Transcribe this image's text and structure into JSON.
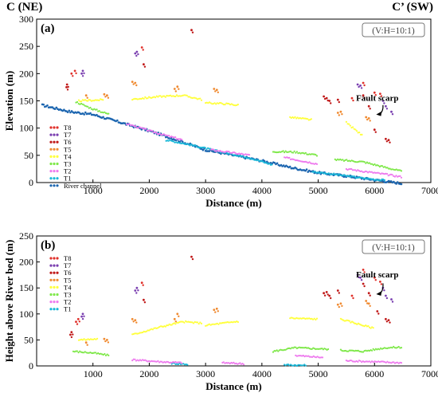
{
  "header": {
    "left": "C (NE)",
    "right": "C’ (SW)"
  },
  "colors": {
    "T8": "#e0302a",
    "T7": "#7a3fb0",
    "T6": "#c01818",
    "T5": "#f08a30",
    "T4": "#ffff3c",
    "T3": "#7fe84a",
    "T2": "#ee7bee",
    "T1": "#1ab8d8",
    "River channel": "#1d66b0"
  },
  "chart_data": [
    {
      "type": "scatter",
      "panel_label": "(a)",
      "scale_note": "(V:H=10:1)",
      "xlabel": "Distance (m)",
      "ylabel": "Elevation (m)",
      "xlim": [
        0,
        7000
      ],
      "ylim": [
        0,
        300
      ],
      "xticks": [
        1000,
        2000,
        3000,
        4000,
        5000,
        6000,
        7000
      ],
      "yticks": [
        0,
        50,
        100,
        150,
        200,
        250,
        300
      ],
      "legend": [
        "T8",
        "T7",
        "T6",
        "T5",
        "T4",
        "T3",
        "T2",
        "T1",
        "River channel"
      ],
      "legend_position": "bottom-left",
      "annotation": {
        "text": "Fault scarp",
        "x": 6100,
        "y": 120
      },
      "series": [
        {
          "name": "River channel",
          "segments": [
            [
              [
                100,
                142
              ],
              [
                600,
                130
              ],
              [
                1000,
                125
              ],
              [
                1500,
                110
              ],
              [
                2000,
                95
              ],
              [
                2500,
                78
              ],
              [
                3000,
                60
              ],
              [
                3500,
                50
              ],
              [
                4000,
                40
              ],
              [
                4500,
                28
              ],
              [
                5000,
                18
              ],
              [
                5500,
                12
              ],
              [
                6000,
                5
              ],
              [
                6500,
                -2
              ]
            ]
          ]
        },
        {
          "name": "T1",
          "segments": [
            [
              [
                2300,
                78
              ],
              [
                2700,
                70
              ],
              [
                3200,
                58
              ],
              [
                3800,
                45
              ],
              [
                4200,
                32
              ]
            ],
            [
              [
                4900,
                20
              ],
              [
                5300,
                15
              ],
              [
                5800,
                8
              ],
              [
                6200,
                4
              ]
            ]
          ]
        },
        {
          "name": "T2",
          "segments": [
            [
              [
                1600,
                108
              ],
              [
                2100,
                92
              ],
              [
                2600,
                78
              ]
            ],
            [
              [
                3100,
                60
              ],
              [
                3800,
                50
              ]
            ],
            [
              [
                4400,
                46
              ],
              [
                5000,
                34
              ]
            ],
            [
              [
                5500,
                25
              ],
              [
                6200,
                15
              ],
              [
                6500,
                10
              ]
            ]
          ]
        },
        {
          "name": "T3",
          "segments": [
            [
              [
                700,
                148
              ],
              [
                1000,
                135
              ],
              [
                1300,
                125
              ]
            ],
            [
              [
                4200,
                57
              ],
              [
                4600,
                56
              ],
              [
                5000,
                50
              ]
            ],
            [
              [
                5300,
                42
              ],
              [
                5800,
                38
              ],
              [
                6500,
                20
              ]
            ]
          ]
        },
        {
          "name": "T4",
          "segments": [
            [
              [
                750,
                150
              ],
              [
                1200,
                152
              ]
            ],
            [
              [
                1700,
                153
              ],
              [
                2200,
                158
              ],
              [
                2600,
                160
              ],
              [
                2950,
                152
              ]
            ],
            [
              [
                3000,
                146
              ],
              [
                3300,
                145
              ],
              [
                3600,
                142
              ]
            ],
            [
              [
                4500,
                120
              ],
              [
                4900,
                115
              ]
            ],
            [
              [
                5500,
                110
              ],
              [
                5800,
                85
              ]
            ]
          ]
        },
        {
          "name": "T5",
          "points": [
            [
              1700,
              185
            ],
            [
              1750,
              183
            ],
            [
              2450,
              172
            ],
            [
              2500,
              176
            ],
            [
              3150,
              172
            ],
            [
              3200,
              170
            ],
            [
              1200,
              162
            ],
            [
              1250,
              160
            ],
            [
              880,
              160
            ],
            [
              5350,
              128
            ],
            [
              5400,
              130
            ],
            [
              5850,
              120
            ],
            [
              5900,
              118
            ]
          ]
        },
        {
          "name": "T6",
          "points": [
            [
              530,
              175
            ],
            [
              540,
              180
            ],
            [
              2750,
              280
            ],
            [
              1900,
              217
            ],
            [
              5100,
              158
            ],
            [
              5150,
              155
            ],
            [
              5350,
              152
            ],
            [
              5800,
              160
            ],
            [
              5900,
              140
            ],
            [
              6000,
              97
            ],
            [
              6200,
              80
            ],
            [
              6250,
              78
            ],
            [
              5200,
              150
            ]
          ]
        },
        {
          "name": "T7",
          "points": [
            [
              800,
              200
            ],
            [
              820,
              205
            ],
            [
              1750,
              237
            ],
            [
              1780,
              240
            ],
            [
              5700,
              180
            ],
            [
              5750,
              178
            ],
            [
              6150,
              150
            ],
            [
              6200,
              140
            ],
            [
              6300,
              130
            ]
          ]
        },
        {
          "name": "T8",
          "points": [
            [
              620,
              200
            ],
            [
              680,
              205
            ],
            [
              1870,
              248
            ],
            [
              5600,
              155
            ],
            [
              5800,
              183
            ],
            [
              6000,
              165
            ],
            [
              6100,
              163
            ]
          ]
        }
      ]
    },
    {
      "type": "scatter",
      "panel_label": "(b)",
      "scale_note": "(V:H=10:1)",
      "xlabel": "Distance (m)",
      "ylabel": "Height above River bed (m)",
      "xlim": [
        0,
        7000
      ],
      "ylim": [
        0,
        250
      ],
      "xticks": [
        1000,
        2000,
        3000,
        4000,
        5000,
        6000,
        7000
      ],
      "yticks": [
        0,
        50,
        100,
        150,
        200,
        250
      ],
      "legend": [
        "T8",
        "T7",
        "T6",
        "T5",
        "T4",
        "T3",
        "T2",
        "T1"
      ],
      "legend_position": "top-left",
      "annotation": {
        "text": "Fault scarp",
        "x": 6100,
        "y": 140
      },
      "series": [
        {
          "name": "T1",
          "segments": [
            [
              [
                2400,
                5
              ],
              [
                2700,
                3
              ]
            ],
            [
              [
                4400,
                2
              ],
              [
                4800,
                1
              ]
            ]
          ]
        },
        {
          "name": "T2",
          "segments": [
            [
              [
                1700,
                12
              ],
              [
                2200,
                8
              ],
              [
                2600,
                6
              ]
            ],
            [
              [
                3300,
                6
              ],
              [
                3700,
                4
              ]
            ],
            [
              [
                4600,
                20
              ],
              [
                5100,
                16
              ]
            ],
            [
              [
                5500,
                10
              ],
              [
                6000,
                8
              ],
              [
                6500,
                6
              ]
            ]
          ]
        },
        {
          "name": "T3",
          "segments": [
            [
              [
                650,
                28
              ],
              [
                1000,
                25
              ],
              [
                1300,
                20
              ]
            ],
            [
              [
                4200,
                28
              ],
              [
                4600,
                35
              ],
              [
                5000,
                33
              ],
              [
                5200,
                32
              ]
            ],
            [
              [
                5400,
                30
              ],
              [
                5800,
                28
              ],
              [
                6200,
                35
              ],
              [
                6500,
                36
              ]
            ]
          ]
        },
        {
          "name": "T4",
          "segments": [
            [
              [
                750,
                50
              ],
              [
                1100,
                52
              ]
            ],
            [
              [
                1700,
                60
              ],
              [
                2200,
                75
              ],
              [
                2600,
                85
              ],
              [
                2950,
                82
              ]
            ],
            [
              [
                3000,
                78
              ],
              [
                3300,
                82
              ],
              [
                3600,
                86
              ]
            ],
            [
              [
                4500,
                92
              ],
              [
                5000,
                90
              ]
            ],
            [
              [
                5400,
                90
              ],
              [
                5800,
                78
              ],
              [
                6000,
                72
              ]
            ]
          ]
        },
        {
          "name": "T5",
          "points": [
            [
              1700,
              90
            ],
            [
              1750,
              88
            ],
            [
              2450,
              90
            ],
            [
              2500,
              100
            ],
            [
              3150,
              108
            ],
            [
              3200,
              110
            ],
            [
              1200,
              52
            ],
            [
              1250,
              50
            ],
            [
              880,
              45
            ],
            [
              5350,
              118
            ],
            [
              5400,
              120
            ],
            [
              5850,
              125
            ],
            [
              5900,
              120
            ]
          ]
        },
        {
          "name": "T6",
          "points": [
            [
              600,
              60
            ],
            [
              620,
              65
            ],
            [
              2750,
              210
            ],
            [
              1900,
              127
            ],
            [
              5100,
              140
            ],
            [
              5150,
              142
            ],
            [
              5350,
              145
            ],
            [
              5800,
              158
            ],
            [
              5900,
              140
            ],
            [
              6050,
              105
            ],
            [
              6200,
              90
            ],
            [
              6250,
              88
            ],
            [
              5200,
              135
            ]
          ]
        },
        {
          "name": "T7",
          "points": [
            [
              800,
              95
            ],
            [
              820,
              100
            ],
            [
              1750,
              145
            ],
            [
              1780,
              150
            ],
            [
              5700,
              175
            ],
            [
              5750,
              170
            ],
            [
              6150,
              150
            ],
            [
              6200,
              135
            ],
            [
              6300,
              128
            ]
          ]
        },
        {
          "name": "T8",
          "points": [
            [
              700,
              85
            ],
            [
              740,
              90
            ],
            [
              1870,
              160
            ],
            [
              5600,
              135
            ],
            [
              5800,
              185
            ],
            [
              6000,
              170
            ],
            [
              6100,
              162
            ]
          ]
        }
      ]
    }
  ]
}
